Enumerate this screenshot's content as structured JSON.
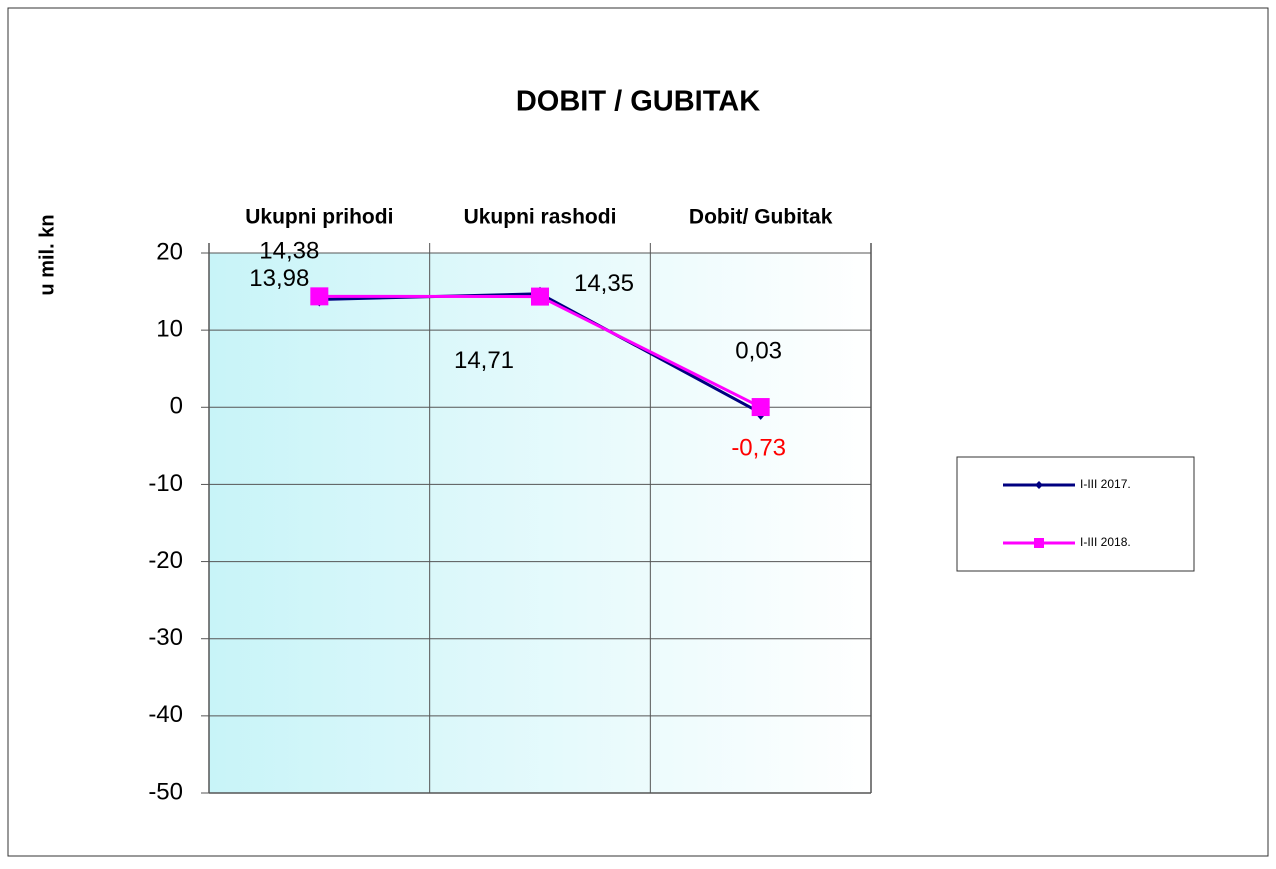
{
  "chart_data": {
    "type": "line",
    "title": "DOBIT / GUBITAK",
    "y_label": "u mil. kn",
    "categories": [
      "Ukupni prihodi",
      "Ukupni rashodi",
      "Dobit/ Gubitak"
    ],
    "series": [
      {
        "name": "I-III 2017.",
        "color": "#000080",
        "values": [
          13.98,
          14.71,
          -0.73
        ],
        "value_labels": [
          "13,98",
          "14,71",
          "-0,73"
        ]
      },
      {
        "name": "I-III 2018.",
        "color": "#ff00ff",
        "values": [
          14.38,
          14.35,
          0.03
        ],
        "value_labels": [
          "14,38",
          "14,35",
          "0,03"
        ]
      }
    ],
    "ylim": [
      -50,
      20
    ],
    "yticks": [
      -50,
      -40,
      -30,
      -20,
      -10,
      0,
      10,
      20
    ],
    "grid": true,
    "legend": "right"
  }
}
